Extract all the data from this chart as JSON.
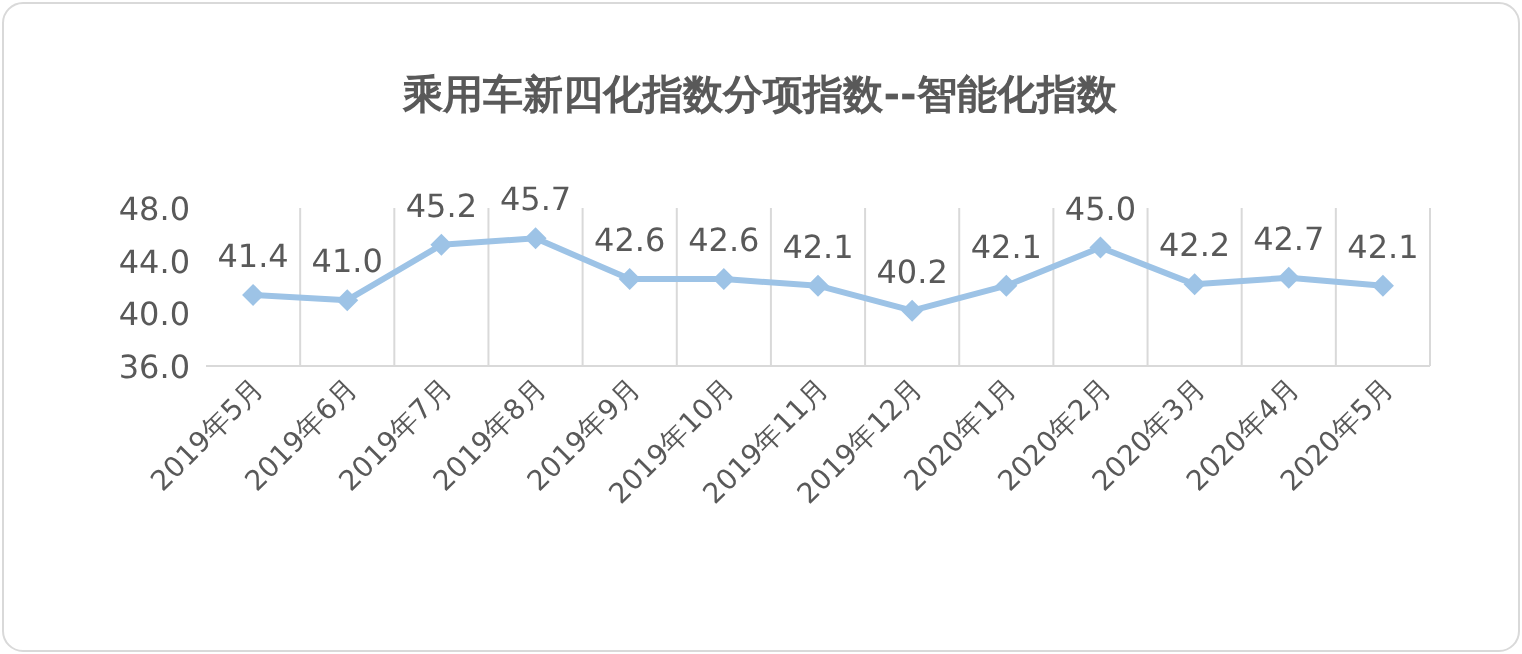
{
  "chart_data": {
    "type": "line",
    "title": "乘用车新四化指数分项指数--智能化指数",
    "categories": [
      "2019年5月",
      "2019年6月",
      "2019年7月",
      "2019年8月",
      "2019年9月",
      "2019年10月",
      "2019年11月",
      "2019年12月",
      "2020年1月",
      "2020年2月",
      "2020年3月",
      "2020年4月",
      "2020年5月"
    ],
    "values": [
      41.4,
      41.0,
      45.2,
      45.7,
      42.6,
      42.6,
      42.1,
      40.2,
      42.1,
      45.0,
      42.2,
      42.7,
      42.1
    ],
    "value_labels": [
      "41.4",
      "41.0",
      "45.2",
      "45.7",
      "42.6",
      "42.6",
      "42.1",
      "40.2",
      "42.1",
      "45.0",
      "42.2",
      "42.7",
      "42.1"
    ],
    "color": "#9dc3e6",
    "ylim": [
      36,
      48
    ],
    "yticks": [
      {
        "value": 36,
        "label": "36.0"
      },
      {
        "value": 40,
        "label": "40.0"
      },
      {
        "value": 44,
        "label": "44.0"
      },
      {
        "value": 48,
        "label": "48.0"
      }
    ],
    "grid": "x",
    "marker": "diamond",
    "line_style": "solid"
  }
}
